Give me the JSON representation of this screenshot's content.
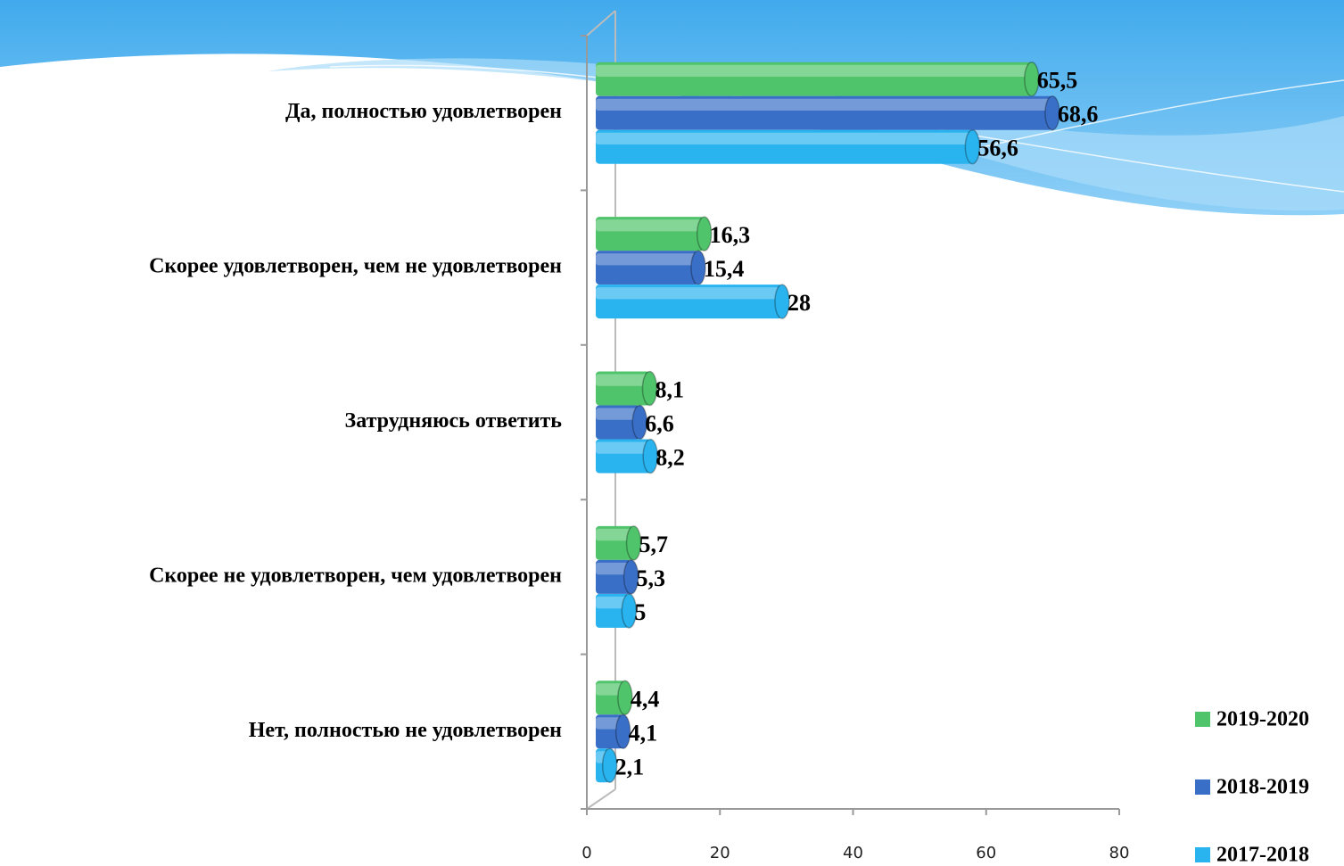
{
  "chart_data": {
    "type": "bar",
    "orientation": "horizontal",
    "categories": [
      "Да, полностью удовлетворен",
      "Скорее удовлетворен, чем не удовлетворен",
      "Затрудняюсь ответить",
      "Скорее не удовлетворен, чем удовлетворен",
      "Нет, полностью не удовлетворен"
    ],
    "series": [
      {
        "name": "2019-2020",
        "color": "#4fc46b",
        "values": [
          65.5,
          16.3,
          8.1,
          5.7,
          4.4
        ],
        "value_labels": [
          "65,5",
          "16,3",
          "8,1",
          "5,7",
          "4,4"
        ]
      },
      {
        "name": "2018-2019",
        "color": "#3a6fc8",
        "values": [
          68.6,
          15.4,
          6.6,
          5.3,
          4.1
        ],
        "value_labels": [
          "68,6",
          "15,4",
          "6,6",
          "5,3",
          "4,1"
        ]
      },
      {
        "name": "2017-2018",
        "color": "#2ab4ef",
        "values": [
          56.6,
          28,
          8.2,
          5,
          2.1
        ],
        "value_labels": [
          "56,6",
          "28",
          "8,2",
          "5",
          "2,1"
        ]
      }
    ],
    "xlim": [
      0,
      80
    ],
    "xticks": [
      0,
      20,
      40,
      60,
      80
    ],
    "legend": "right"
  }
}
